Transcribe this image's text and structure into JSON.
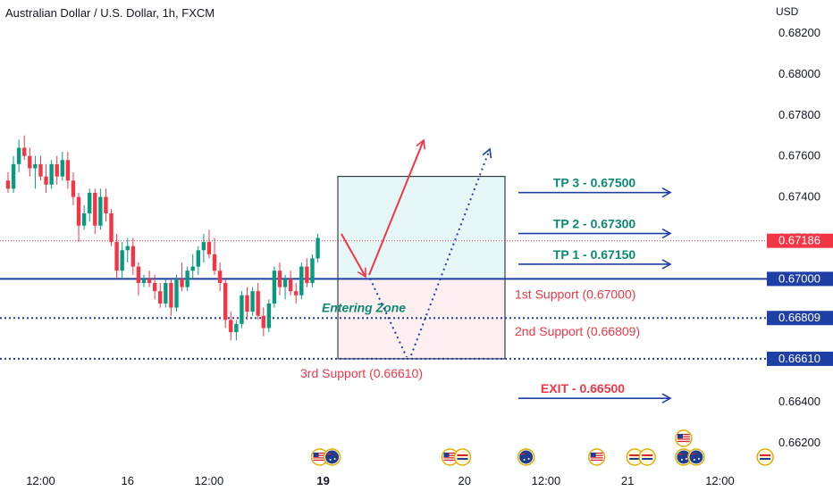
{
  "header": {
    "title": "Australian Dollar / U.S. Dollar, 1h, FXCM",
    "currency": "USD"
  },
  "colors": {
    "up": "#089981",
    "down": "#f23645",
    "support_line": "#1e3fa6",
    "support_text": "#f23645",
    "tp_text": "#0b8a6f",
    "arrow_red": "#f23645",
    "arrow_blue": "#1e3fa6",
    "tp_zone_fill": "#e6f7f8",
    "sl_zone_fill": "#fdeff0",
    "price_badge_current": "#f23645",
    "price_badge_line": "#1e3fa6"
  },
  "chart_data": {
    "type": "candlestick",
    "symbol": "Australian Dollar / U.S. Dollar, 1h, FXCM",
    "y_unit": "USD",
    "ylim": [
      0.6614,
      0.6826
    ],
    "y_ticks": [
      "0.68200",
      "0.68000",
      "0.67800",
      "0.67600",
      "0.67400",
      "0.67200",
      "0.66400",
      "0.66200"
    ],
    "x_ticks": [
      {
        "label": "12:00",
        "slot": 6
      },
      {
        "label": "16",
        "slot": 22
      },
      {
        "label": "12:00",
        "slot": 37
      },
      {
        "label": "19",
        "slot": 58
      },
      {
        "label": "20",
        "slot": 84
      },
      {
        "label": "12:00",
        "slot": 99
      },
      {
        "label": "21",
        "slot": 114
      },
      {
        "label": "12:00",
        "slot": 131
      }
    ],
    "candles": [
      [
        0.6748,
        0.6752,
        0.6742,
        0.6744
      ],
      [
        0.6744,
        0.676,
        0.6742,
        0.6756
      ],
      [
        0.6756,
        0.6768,
        0.6752,
        0.6764
      ],
      [
        0.6764,
        0.677,
        0.6758,
        0.676
      ],
      [
        0.676,
        0.6764,
        0.675,
        0.6754
      ],
      [
        0.6754,
        0.676,
        0.6744,
        0.6756
      ],
      [
        0.6756,
        0.676,
        0.6748,
        0.675
      ],
      [
        0.675,
        0.6756,
        0.6742,
        0.6746
      ],
      [
        0.6746,
        0.6758,
        0.6744,
        0.6756
      ],
      [
        0.6756,
        0.676,
        0.6746,
        0.675
      ],
      [
        0.675,
        0.6762,
        0.6748,
        0.6758
      ],
      [
        0.6758,
        0.6762,
        0.6744,
        0.6748
      ],
      [
        0.6748,
        0.6752,
        0.6736,
        0.674
      ],
      [
        0.674,
        0.6742,
        0.6718,
        0.6726
      ],
      [
        0.6726,
        0.6736,
        0.6724,
        0.6732
      ],
      [
        0.6732,
        0.6744,
        0.6728,
        0.6742
      ],
      [
        0.6742,
        0.6744,
        0.6722,
        0.6726
      ],
      [
        0.6726,
        0.6744,
        0.6724,
        0.674
      ],
      [
        0.674,
        0.6744,
        0.6728,
        0.6732
      ],
      [
        0.6732,
        0.6734,
        0.6716,
        0.6718
      ],
      [
        0.6718,
        0.6722,
        0.67,
        0.6704
      ],
      [
        0.6704,
        0.6718,
        0.67,
        0.6714
      ],
      [
        0.6714,
        0.672,
        0.6708,
        0.6716
      ],
      [
        0.6716,
        0.672,
        0.6702,
        0.6706
      ],
      [
        0.6706,
        0.6708,
        0.6692,
        0.6698
      ],
      [
        0.6698,
        0.6702,
        0.6696,
        0.67
      ],
      [
        0.67,
        0.6704,
        0.6696,
        0.6698
      ],
      [
        0.6698,
        0.6702,
        0.669,
        0.6694
      ],
      [
        0.6694,
        0.6698,
        0.6686,
        0.6688
      ],
      [
        0.6688,
        0.67,
        0.6686,
        0.6698
      ],
      [
        0.6698,
        0.67,
        0.6682,
        0.6686
      ],
      [
        0.6686,
        0.6702,
        0.6684,
        0.67
      ],
      [
        0.67,
        0.6708,
        0.6694,
        0.6696
      ],
      [
        0.6696,
        0.6706,
        0.6694,
        0.6704
      ],
      [
        0.6704,
        0.6712,
        0.67,
        0.6706
      ],
      [
        0.6706,
        0.6716,
        0.6702,
        0.6714
      ],
      [
        0.6714,
        0.6722,
        0.6708,
        0.6718
      ],
      [
        0.6718,
        0.6724,
        0.671,
        0.6712
      ],
      [
        0.6712,
        0.672,
        0.6702,
        0.6704
      ],
      [
        0.6704,
        0.6708,
        0.6694,
        0.6698
      ],
      [
        0.6698,
        0.67,
        0.6676,
        0.668
      ],
      [
        0.668,
        0.6684,
        0.667,
        0.6674
      ],
      [
        0.6674,
        0.668,
        0.667,
        0.6678
      ],
      [
        0.6678,
        0.6694,
        0.6676,
        0.6692
      ],
      [
        0.6692,
        0.6696,
        0.668,
        0.6684
      ],
      [
        0.6684,
        0.6696,
        0.6682,
        0.6694
      ],
      [
        0.6694,
        0.6698,
        0.668,
        0.6682
      ],
      [
        0.6682,
        0.6686,
        0.6672,
        0.6676
      ],
      [
        0.6676,
        0.669,
        0.6674,
        0.6688
      ],
      [
        0.6688,
        0.6706,
        0.6686,
        0.6704
      ],
      [
        0.6704,
        0.6708,
        0.6692,
        0.6696
      ],
      [
        0.6696,
        0.6702,
        0.669,
        0.67
      ],
      [
        0.67,
        0.6704,
        0.6692,
        0.6694
      ],
      [
        0.6694,
        0.6698,
        0.6688,
        0.6692
      ],
      [
        0.6692,
        0.6708,
        0.669,
        0.6706
      ],
      [
        0.6706,
        0.671,
        0.6696,
        0.6698
      ],
      [
        0.6698,
        0.6712,
        0.6696,
        0.671
      ],
      [
        0.671,
        0.6722,
        0.6708,
        0.672
      ]
    ],
    "horizontal_lines": [
      {
        "price": 0.67,
        "style": "solid",
        "label": "1st Support (0.67000)",
        "badge": "0.67000"
      },
      {
        "price": 0.66809,
        "style": "dotted",
        "label": "2nd Support (0.66809)",
        "badge": "0.66809"
      },
      {
        "price": 0.6661,
        "style": "dotted",
        "label": "3rd Support (0.66610)",
        "badge": "0.66610"
      }
    ],
    "current_price": {
      "price": 0.67186,
      "badge": "0.67186"
    },
    "targets": [
      {
        "label": "TP 3 - 0.67500",
        "price": 0.675
      },
      {
        "label": "TP 2 - 0.67300",
        "price": 0.673
      },
      {
        "label": "TP 1 - 0.67150",
        "price": 0.6715
      }
    ],
    "exit": {
      "label": "EXIT - 0.66500",
      "price": 0.665
    },
    "zone": {
      "top": 0.675,
      "mid": 0.67,
      "bottom": 0.6661
    },
    "entering_zone_label": "Entering Zone",
    "event_flags": [
      {
        "slot": 57,
        "types": [
          "us",
          "au"
        ]
      },
      {
        "slot": 81,
        "types": [
          "us",
          "eu"
        ]
      },
      {
        "slot": 95,
        "types": [
          "au"
        ]
      },
      {
        "slot": 108,
        "types": [
          "us"
        ]
      },
      {
        "slot": 115,
        "types": [
          "eu",
          "eu"
        ]
      },
      {
        "slot": 124,
        "types": [
          "au",
          "au"
        ]
      },
      {
        "slot": 124,
        "types": [
          "us"
        ],
        "row": 2
      },
      {
        "slot": 139,
        "types": [
          "eu"
        ]
      }
    ]
  }
}
